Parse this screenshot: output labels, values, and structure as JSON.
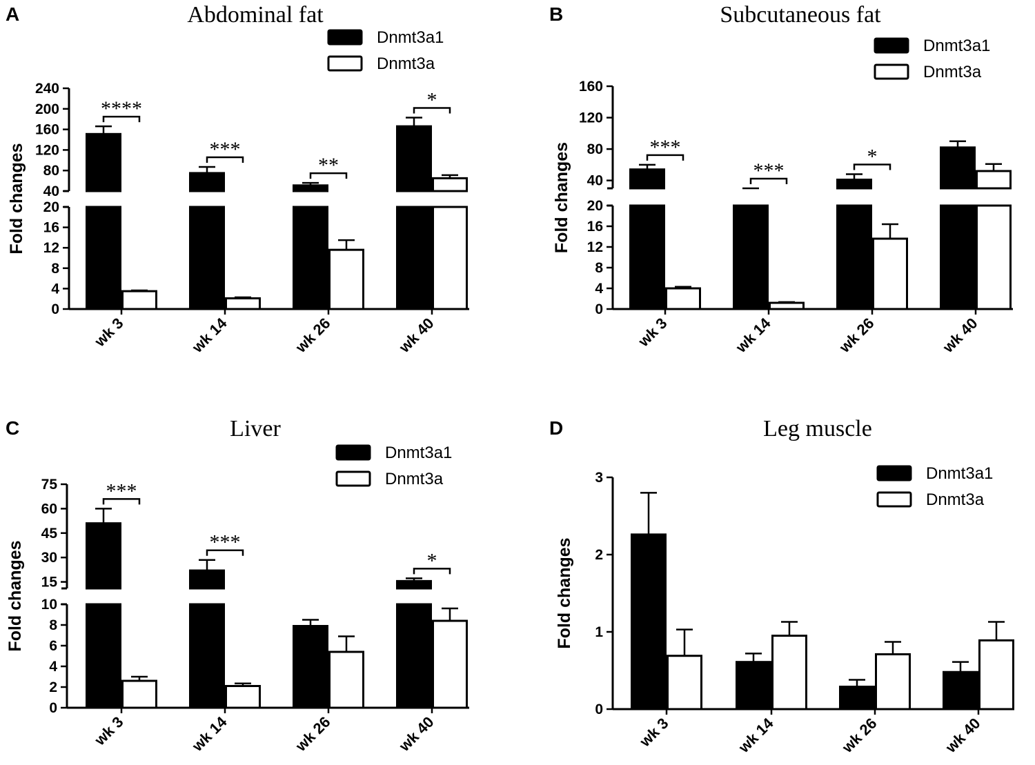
{
  "colors": {
    "series_fill": [
      "#000000",
      "#ffffff"
    ],
    "stroke": "#000000"
  },
  "chart_data": [
    {
      "panel": "A",
      "type": "bar",
      "title": "Abdominal fat",
      "ylabel": "Fold changes",
      "xlabel": "",
      "categories": [
        "wk 3",
        "wk 14",
        "wk 26",
        "wk 40"
      ],
      "legend": {
        "placement": "top-right",
        "entries": [
          "Dnmt3a1",
          "Dnmt3a"
        ]
      },
      "series": [
        {
          "name": "Dnmt3a1",
          "values": [
            151,
            75,
            51,
            166
          ],
          "errors": [
            15,
            12,
            5,
            17
          ]
        },
        {
          "name": "Dnmt3a",
          "values": [
            3.5,
            2.1,
            11.6,
            65
          ],
          "errors": [
            0.15,
            0.2,
            1.9,
            6
          ]
        }
      ],
      "y_axis": {
        "broken": true,
        "lower": {
          "range": [
            0,
            20
          ],
          "ticks": [
            0,
            4,
            8,
            12,
            16,
            20
          ]
        },
        "upper": {
          "range": [
            40,
            240
          ],
          "ticks": [
            40,
            80,
            120,
            160,
            200,
            240
          ]
        }
      },
      "significance": [
        {
          "category": "wk 3",
          "label": "****"
        },
        {
          "category": "wk 14",
          "label": "***"
        },
        {
          "category": "wk 26",
          "label": "**"
        },
        {
          "category": "wk 40",
          "label": "*"
        }
      ]
    },
    {
      "panel": "B",
      "type": "bar",
      "title": "Subcutaneous fat",
      "ylabel": "Fold changes",
      "xlabel": "",
      "categories": [
        "wk 3",
        "wk 14",
        "wk 26",
        "wk 40"
      ],
      "legend": {
        "placement": "top-right",
        "entries": [
          "Dnmt3a1",
          "Dnmt3a"
        ]
      },
      "series": [
        {
          "name": "Dnmt3a1",
          "values": [
            54,
            25,
            41,
            82
          ],
          "errors": [
            6,
            3,
            7,
            8
          ]
        },
        {
          "name": "Dnmt3a",
          "values": [
            4.0,
            1.2,
            13.6,
            52
          ],
          "errors": [
            0.3,
            0.15,
            2.8,
            9
          ]
        }
      ],
      "y_axis": {
        "broken": true,
        "lower": {
          "range": [
            0,
            20
          ],
          "ticks": [
            0,
            4,
            8,
            12,
            16,
            20
          ]
        },
        "upper": {
          "range": [
            30,
            160
          ],
          "ticks": [
            40,
            80,
            120,
            160
          ]
        }
      },
      "significance": [
        {
          "category": "wk 3",
          "label": "***"
        },
        {
          "category": "wk 14",
          "label": "***"
        },
        {
          "category": "wk 26",
          "label": "*"
        }
      ]
    },
    {
      "panel": "C",
      "type": "bar",
      "title": "Liver",
      "ylabel": "Fold changes",
      "xlabel": "",
      "categories": [
        "wk 3",
        "wk 14",
        "wk 26",
        "wk 40"
      ],
      "legend": {
        "placement": "top-right",
        "entries": [
          "Dnmt3a1",
          "Dnmt3a"
        ]
      },
      "series": [
        {
          "name": "Dnmt3a1",
          "values": [
            51,
            22,
            7.9,
            15.5
          ],
          "errors": [
            9,
            6.5,
            0.6,
            1.7
          ]
        },
        {
          "name": "Dnmt3a",
          "values": [
            2.6,
            2.1,
            5.4,
            8.4
          ],
          "errors": [
            0.4,
            0.25,
            1.5,
            1.2
          ]
        }
      ],
      "y_axis": {
        "broken": true,
        "lower": {
          "range": [
            0,
            10
          ],
          "ticks": [
            0,
            2,
            4,
            6,
            8,
            10
          ]
        },
        "upper": {
          "range": [
            11,
            75
          ],
          "ticks": [
            15,
            30,
            45,
            60,
            75
          ]
        }
      },
      "significance": [
        {
          "category": "wk 3",
          "label": "***"
        },
        {
          "category": "wk 14",
          "label": "***"
        },
        {
          "category": "wk 40",
          "label": "*"
        }
      ]
    },
    {
      "panel": "D",
      "type": "bar",
      "title": "Leg muscle",
      "ylabel": "Fold changes",
      "xlabel": "",
      "categories": [
        "wk 3",
        "wk 14",
        "wk 26",
        "wk 40"
      ],
      "legend": {
        "placement": "top-right",
        "entries": [
          "Dnmt3a1",
          "Dnmt3a"
        ]
      },
      "series": [
        {
          "name": "Dnmt3a1",
          "values": [
            2.26,
            0.61,
            0.29,
            0.48
          ],
          "errors": [
            0.54,
            0.11,
            0.09,
            0.13
          ]
        },
        {
          "name": "Dnmt3a",
          "values": [
            0.69,
            0.95,
            0.71,
            0.89
          ],
          "errors": [
            0.34,
            0.18,
            0.16,
            0.24
          ]
        }
      ],
      "y_axis": {
        "broken": false,
        "lower": {
          "range": [
            0,
            3
          ],
          "ticks": [
            0,
            1,
            2,
            3
          ]
        }
      },
      "significance": []
    }
  ]
}
